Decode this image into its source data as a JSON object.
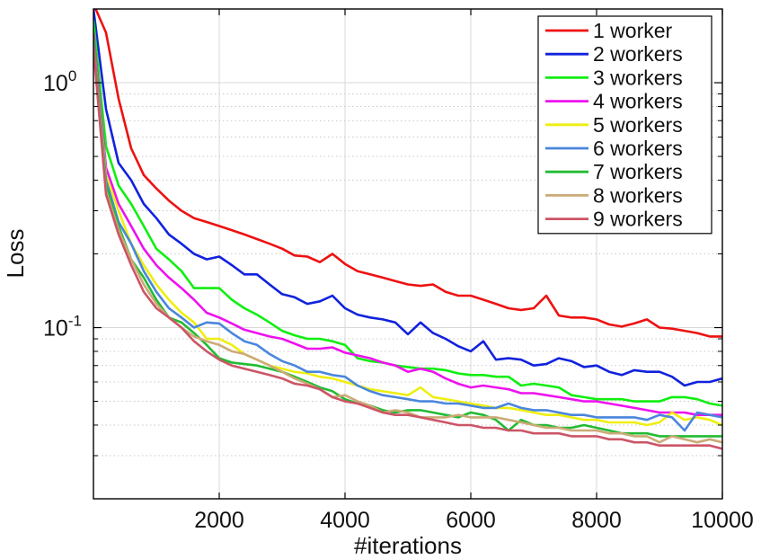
{
  "chart_data": {
    "type": "line",
    "title": "",
    "xlabel": "#iterations",
    "ylabel": "Loss",
    "xlim": [
      0,
      10000
    ],
    "ylim": [
      0.02,
      2.0
    ],
    "yscale": "log",
    "grid": true,
    "legend_position": "top-right",
    "x_ticks": [
      {
        "value": 2000,
        "label": "2000"
      },
      {
        "value": 4000,
        "label": "4000"
      },
      {
        "value": 6000,
        "label": "6000"
      },
      {
        "value": 8000,
        "label": "8000"
      },
      {
        "value": 10000,
        "label": "10000"
      }
    ],
    "y_ticks": [
      {
        "value": 1.0,
        "base": "10",
        "exp": "0"
      },
      {
        "value": 0.1,
        "base": "10",
        "exp": "-1"
      }
    ],
    "x": [
      0,
      200,
      400,
      600,
      800,
      1000,
      1200,
      1400,
      1600,
      1800,
      2000,
      2200,
      2400,
      2600,
      2800,
      3000,
      3200,
      3400,
      3600,
      3800,
      4000,
      4200,
      4400,
      4600,
      4800,
      5000,
      5200,
      5400,
      5600,
      5800,
      6000,
      6200,
      6400,
      6600,
      6800,
      7000,
      7200,
      7400,
      7600,
      7800,
      8000,
      8200,
      8400,
      8600,
      8800,
      9000,
      9200,
      9400,
      9600,
      9800,
      10000
    ],
    "series": [
      {
        "name": "1 worker",
        "color": "#ee1111",
        "values": [
          2.1,
          1.6,
          0.86,
          0.54,
          0.42,
          0.37,
          0.33,
          0.3,
          0.28,
          0.27,
          0.26,
          0.25,
          0.24,
          0.23,
          0.22,
          0.21,
          0.197,
          0.195,
          0.185,
          0.2,
          0.182,
          0.17,
          0.165,
          0.16,
          0.155,
          0.15,
          0.148,
          0.15,
          0.14,
          0.135,
          0.135,
          0.13,
          0.125,
          0.12,
          0.118,
          0.12,
          0.135,
          0.112,
          0.11,
          0.11,
          0.108,
          0.103,
          0.101,
          0.104,
          0.108,
          0.1,
          0.099,
          0.097,
          0.095,
          0.092,
          0.092
        ]
      },
      {
        "name": "2 workers",
        "color": "#1122dd",
        "values": [
          2.0,
          0.78,
          0.47,
          0.4,
          0.32,
          0.28,
          0.24,
          0.22,
          0.2,
          0.19,
          0.195,
          0.18,
          0.165,
          0.165,
          0.15,
          0.137,
          0.133,
          0.125,
          0.128,
          0.135,
          0.12,
          0.113,
          0.11,
          0.108,
          0.105,
          0.094,
          0.105,
          0.095,
          0.09,
          0.084,
          0.08,
          0.088,
          0.074,
          0.075,
          0.074,
          0.07,
          0.071,
          0.075,
          0.073,
          0.069,
          0.07,
          0.066,
          0.064,
          0.067,
          0.066,
          0.066,
          0.063,
          0.058,
          0.06,
          0.06,
          0.062
        ]
      },
      {
        "name": "3 workers",
        "color": "#11ee11",
        "values": [
          1.8,
          0.55,
          0.38,
          0.32,
          0.26,
          0.21,
          0.19,
          0.17,
          0.145,
          0.145,
          0.145,
          0.13,
          0.12,
          0.113,
          0.105,
          0.097,
          0.093,
          0.09,
          0.09,
          0.088,
          0.085,
          0.075,
          0.073,
          0.072,
          0.07,
          0.069,
          0.068,
          0.068,
          0.067,
          0.065,
          0.064,
          0.064,
          0.063,
          0.063,
          0.058,
          0.059,
          0.058,
          0.057,
          0.053,
          0.052,
          0.051,
          0.051,
          0.051,
          0.05,
          0.05,
          0.05,
          0.052,
          0.052,
          0.051,
          0.049,
          0.048
        ]
      },
      {
        "name": "4 workers",
        "color": "#ee11ee",
        "values": [
          1.6,
          0.45,
          0.32,
          0.26,
          0.21,
          0.18,
          0.16,
          0.145,
          0.13,
          0.115,
          0.11,
          0.104,
          0.098,
          0.095,
          0.092,
          0.09,
          0.086,
          0.082,
          0.082,
          0.083,
          0.079,
          0.077,
          0.075,
          0.072,
          0.07,
          0.066,
          0.068,
          0.066,
          0.062,
          0.059,
          0.057,
          0.058,
          0.057,
          0.056,
          0.054,
          0.054,
          0.053,
          0.052,
          0.051,
          0.05,
          0.05,
          0.049,
          0.048,
          0.047,
          0.046,
          0.045,
          0.045,
          0.045,
          0.044,
          0.044,
          0.044
        ]
      },
      {
        "name": "5 workers",
        "color": "#eeee11",
        "values": [
          1.5,
          0.42,
          0.3,
          0.22,
          0.18,
          0.15,
          0.13,
          0.115,
          0.105,
          0.09,
          0.09,
          0.085,
          0.078,
          0.074,
          0.07,
          0.068,
          0.066,
          0.065,
          0.063,
          0.062,
          0.06,
          0.058,
          0.056,
          0.055,
          0.054,
          0.053,
          0.057,
          0.052,
          0.051,
          0.05,
          0.049,
          0.048,
          0.047,
          0.047,
          0.046,
          0.045,
          0.044,
          0.044,
          0.043,
          0.042,
          0.042,
          0.041,
          0.041,
          0.041,
          0.04,
          0.041,
          0.045,
          0.042,
          0.043,
          0.042,
          0.04
        ]
      },
      {
        "name": "6 workers",
        "color": "#4a86dd",
        "values": [
          1.5,
          0.4,
          0.27,
          0.22,
          0.17,
          0.14,
          0.12,
          0.11,
          0.1,
          0.105,
          0.104,
          0.095,
          0.088,
          0.085,
          0.078,
          0.073,
          0.07,
          0.066,
          0.066,
          0.064,
          0.063,
          0.058,
          0.055,
          0.053,
          0.052,
          0.051,
          0.05,
          0.05,
          0.049,
          0.049,
          0.048,
          0.047,
          0.047,
          0.049,
          0.047,
          0.046,
          0.046,
          0.045,
          0.044,
          0.044,
          0.043,
          0.043,
          0.043,
          0.043,
          0.042,
          0.044,
          0.043,
          0.038,
          0.045,
          0.044,
          0.043
        ]
      },
      {
        "name": "7 workers",
        "color": "#22bb33",
        "values": [
          1.5,
          0.38,
          0.26,
          0.19,
          0.16,
          0.13,
          0.11,
          0.105,
          0.095,
          0.085,
          0.075,
          0.072,
          0.071,
          0.07,
          0.068,
          0.066,
          0.063,
          0.06,
          0.057,
          0.055,
          0.051,
          0.049,
          0.048,
          0.046,
          0.045,
          0.046,
          0.046,
          0.045,
          0.044,
          0.043,
          0.045,
          0.044,
          0.042,
          0.038,
          0.042,
          0.04,
          0.04,
          0.039,
          0.039,
          0.04,
          0.039,
          0.038,
          0.037,
          0.037,
          0.037,
          0.036,
          0.036,
          0.036,
          0.036,
          0.036,
          0.036
        ]
      },
      {
        "name": "8 workers",
        "color": "#ccaa77",
        "values": [
          1.4,
          0.36,
          0.25,
          0.19,
          0.15,
          0.125,
          0.11,
          0.1,
          0.092,
          0.088,
          0.085,
          0.08,
          0.078,
          0.074,
          0.07,
          0.066,
          0.062,
          0.059,
          0.056,
          0.052,
          0.053,
          0.05,
          0.048,
          0.045,
          0.046,
          0.045,
          0.043,
          0.043,
          0.043,
          0.044,
          0.043,
          0.043,
          0.043,
          0.042,
          0.041,
          0.04,
          0.039,
          0.039,
          0.038,
          0.038,
          0.038,
          0.037,
          0.037,
          0.036,
          0.036,
          0.034,
          0.036,
          0.035,
          0.034,
          0.035,
          0.034
        ]
      },
      {
        "name": "9 workers",
        "color": "#cc5566",
        "values": [
          1.4,
          0.35,
          0.24,
          0.18,
          0.14,
          0.12,
          0.11,
          0.1,
          0.088,
          0.08,
          0.074,
          0.07,
          0.068,
          0.066,
          0.064,
          0.062,
          0.059,
          0.058,
          0.056,
          0.052,
          0.05,
          0.049,
          0.047,
          0.045,
          0.044,
          0.044,
          0.043,
          0.042,
          0.041,
          0.04,
          0.04,
          0.039,
          0.039,
          0.038,
          0.038,
          0.037,
          0.037,
          0.037,
          0.036,
          0.036,
          0.036,
          0.035,
          0.035,
          0.034,
          0.034,
          0.033,
          0.033,
          0.033,
          0.033,
          0.033,
          0.032
        ]
      }
    ]
  }
}
